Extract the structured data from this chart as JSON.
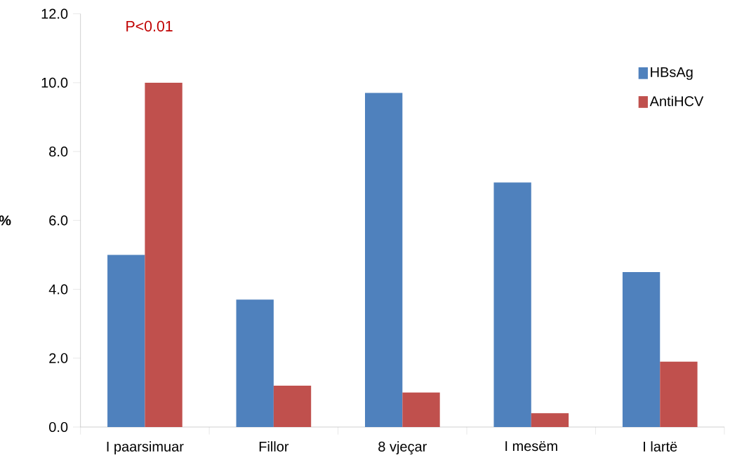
{
  "chart_data": {
    "type": "bar",
    "ylabel": "%",
    "categories": [
      "I paarsimuar",
      "Fillor",
      "8 vjeçar",
      "I mesëm",
      "I lartë"
    ],
    "series": [
      {
        "name": "HBsAg",
        "color": "#4f81bd",
        "values": [
          5.0,
          3.7,
          9.7,
          7.1,
          4.5
        ]
      },
      {
        "name": "AntiHCV",
        "color": "#c0504d",
        "values": [
          10.0,
          1.2,
          1.0,
          0.4,
          1.9
        ]
      }
    ],
    "ylim": [
      0,
      12
    ],
    "yticks": [
      {
        "value": 0,
        "label": "0.0"
      },
      {
        "value": 2,
        "label": "2.0"
      },
      {
        "value": 4,
        "label": "4.0"
      },
      {
        "value": 6,
        "label": "6.0"
      },
      {
        "value": 8,
        "label": "8.0"
      },
      {
        "value": 10,
        "label": "10.0"
      },
      {
        "value": 12,
        "label": "12.0"
      }
    ],
    "annotations": [
      "P<0.01"
    ],
    "legend": "right",
    "grid": false
  }
}
